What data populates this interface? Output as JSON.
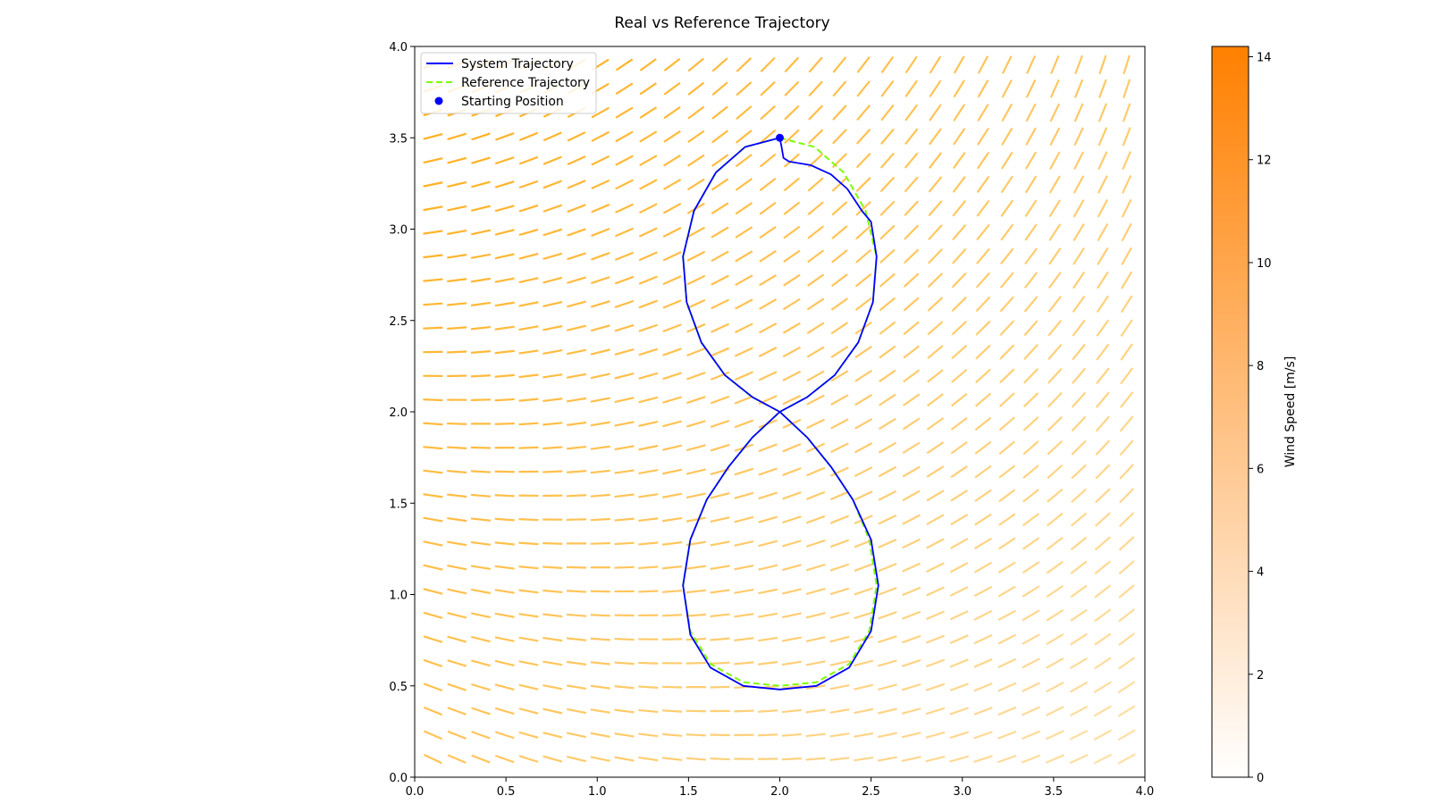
{
  "figure": {
    "title": "Real vs Reference Trajectory",
    "background": "#ffffff"
  },
  "chart_data": {
    "type": "line",
    "title": "Real vs Reference Trajectory",
    "xlabel": "",
    "ylabel": "",
    "xlim": [
      0.0,
      4.0
    ],
    "ylim": [
      0.0,
      4.0
    ],
    "xticks": [
      "0.0",
      "0.5",
      "1.0",
      "1.5",
      "2.0",
      "2.5",
      "3.0",
      "3.5",
      "4.0"
    ],
    "yticks": [
      "0.0",
      "0.5",
      "1.0",
      "1.5",
      "2.0",
      "2.5",
      "3.0",
      "3.5",
      "4.0"
    ],
    "grid": false,
    "legend": {
      "placement": "upper-left",
      "entries": [
        {
          "label": "System Trajectory",
          "style": "solid-line",
          "color": "#0000ff"
        },
        {
          "label": "Reference Trajectory",
          "style": "dashed-line",
          "color": "#7cfc00"
        },
        {
          "label": "Starting Position",
          "style": "marker",
          "color": "#0000ff"
        }
      ]
    },
    "series": [
      {
        "name": "Reference Trajectory",
        "color": "#7cfc00",
        "dash": "dashed",
        "points": [
          [
            2.0,
            3.5
          ],
          [
            2.19,
            3.45
          ],
          [
            2.35,
            3.31
          ],
          [
            2.47,
            3.1
          ],
          [
            2.53,
            2.85
          ],
          [
            2.51,
            2.6
          ],
          [
            2.43,
            2.38
          ],
          [
            2.3,
            2.2
          ],
          [
            2.15,
            2.08
          ],
          [
            2.0,
            2.0
          ],
          [
            1.85,
            1.86
          ],
          [
            1.72,
            1.7
          ],
          [
            1.6,
            1.52
          ],
          [
            1.51,
            1.3
          ],
          [
            1.47,
            1.05
          ],
          [
            1.51,
            0.8
          ],
          [
            1.62,
            0.62
          ],
          [
            1.8,
            0.52
          ],
          [
            2.0,
            0.5
          ],
          [
            2.2,
            0.52
          ],
          [
            2.38,
            0.62
          ],
          [
            2.49,
            0.8
          ],
          [
            2.53,
            1.05
          ],
          [
            2.49,
            1.3
          ],
          [
            2.4,
            1.52
          ],
          [
            2.28,
            1.7
          ],
          [
            2.15,
            1.86
          ],
          [
            2.0,
            2.0
          ],
          [
            1.85,
            2.08
          ],
          [
            1.7,
            2.2
          ],
          [
            1.57,
            2.38
          ],
          [
            1.49,
            2.6
          ],
          [
            1.47,
            2.85
          ],
          [
            1.53,
            3.1
          ],
          [
            1.65,
            3.31
          ],
          [
            1.81,
            3.45
          ],
          [
            2.0,
            3.5
          ]
        ]
      },
      {
        "name": "System Trajectory",
        "color": "#0000ff",
        "dash": "solid",
        "points": [
          [
            2.0,
            3.5
          ],
          [
            2.01,
            3.45
          ],
          [
            2.02,
            3.39
          ],
          [
            2.05,
            3.37
          ],
          [
            2.17,
            3.35
          ],
          [
            2.28,
            3.3
          ],
          [
            2.37,
            3.22
          ],
          [
            2.45,
            3.1
          ],
          [
            2.5,
            3.04
          ],
          [
            2.53,
            2.85
          ],
          [
            2.51,
            2.6
          ],
          [
            2.43,
            2.38
          ],
          [
            2.3,
            2.2
          ],
          [
            2.15,
            2.08
          ],
          [
            2.0,
            2.0
          ],
          [
            1.85,
            1.86
          ],
          [
            1.72,
            1.7
          ],
          [
            1.6,
            1.52
          ],
          [
            1.51,
            1.3
          ],
          [
            1.47,
            1.05
          ],
          [
            1.51,
            0.78
          ],
          [
            1.62,
            0.6
          ],
          [
            1.8,
            0.5
          ],
          [
            2.0,
            0.48
          ],
          [
            2.2,
            0.5
          ],
          [
            2.38,
            0.6
          ],
          [
            2.5,
            0.8
          ],
          [
            2.54,
            1.05
          ],
          [
            2.5,
            1.3
          ],
          [
            2.4,
            1.52
          ],
          [
            2.28,
            1.7
          ],
          [
            2.15,
            1.86
          ],
          [
            2.0,
            2.0
          ],
          [
            1.85,
            2.08
          ],
          [
            1.7,
            2.2
          ],
          [
            1.57,
            2.38
          ],
          [
            1.49,
            2.6
          ],
          [
            1.47,
            2.85
          ],
          [
            1.53,
            3.1
          ],
          [
            1.65,
            3.31
          ],
          [
            1.81,
            3.45
          ],
          [
            2.0,
            3.5
          ]
        ]
      }
    ],
    "starting_position": {
      "x": 2.0,
      "y": 3.5,
      "color": "#0000ff"
    },
    "wind_field": {
      "type": "quiver",
      "color": "#ffa500",
      "x_range": [
        0.1,
        3.9
      ],
      "y_range": [
        0.1,
        3.9
      ],
      "columns": 30,
      "rows": 30,
      "direction_lower_left": "east-south-east",
      "direction_upper_right": "north-north-east"
    },
    "colorbar": {
      "label": "Wind Speed [m/s]",
      "range": [
        0,
        14.2
      ],
      "ticks": [
        "0",
        "2",
        "4",
        "6",
        "8",
        "10",
        "12",
        "14"
      ],
      "color_low": "#ffffff",
      "color_high": "#ff8000"
    }
  }
}
